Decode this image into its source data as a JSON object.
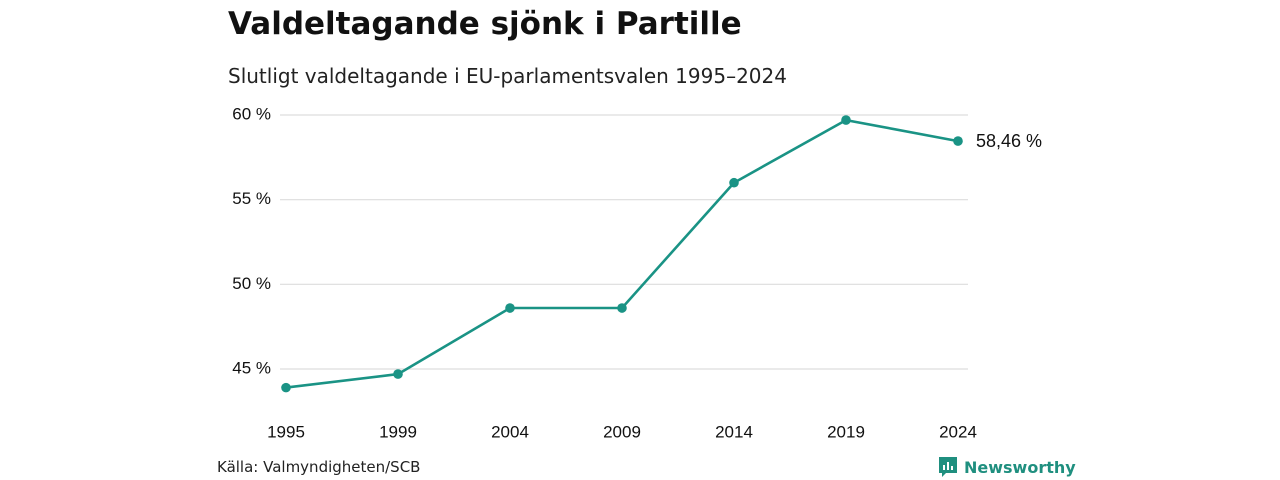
{
  "title": "Valdeltagande sjönk i Partille",
  "subtitle": "Slutligt valdeltagande i EU-parlamentsvalen 1995–2024",
  "source": "Källa: Valmyndigheten/SCB",
  "brand": {
    "name": "Newsworthy",
    "icon": "newsworthy-logo-icon",
    "color": "#1f8f7f"
  },
  "colors": {
    "line": "#1a9385",
    "grid": "#dddddd",
    "text": "#111111"
  },
  "chart_data": {
    "type": "line",
    "categories": [
      "1995",
      "1999",
      "2004",
      "2009",
      "2014",
      "2019",
      "2024"
    ],
    "series": [
      {
        "values": [
          43.9,
          44.7,
          48.6,
          48.6,
          56.0,
          59.7,
          58.46
        ]
      }
    ],
    "y_ticks": [
      {
        "value": 45,
        "label": "45 %"
      },
      {
        "value": 50,
        "label": "50 %"
      },
      {
        "value": 55,
        "label": "55 %"
      },
      {
        "value": 60,
        "label": "60 %"
      }
    ],
    "ylim": [
      43.5,
      60.2
    ],
    "grid": true,
    "end_label": "58,46 %"
  }
}
